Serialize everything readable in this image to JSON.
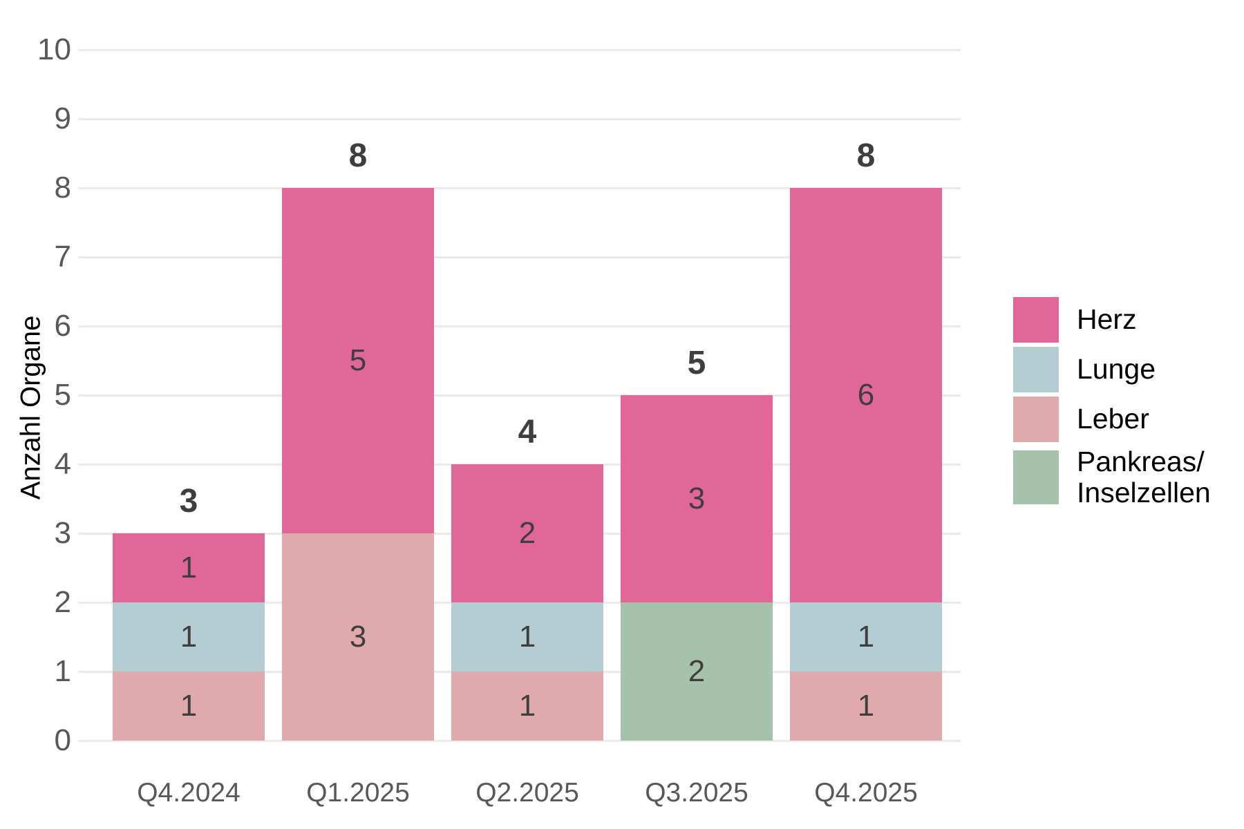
{
  "chart_data": {
    "type": "bar",
    "stacked": true,
    "title": "",
    "xlabel": "",
    "ylabel": "Anzahl Organe",
    "ylim": [
      0,
      10
    ],
    "yticks": [
      0,
      1,
      2,
      3,
      4,
      5,
      6,
      7,
      8,
      9,
      10
    ],
    "grid": "horizontal",
    "legend_position": "right",
    "categories": [
      "Q4.2024",
      "Q1.2025",
      "Q2.2025",
      "Q3.2025",
      "Q4.2025"
    ],
    "series": [
      {
        "name": "Herz",
        "legend_label": "Herz",
        "color": "#e26799",
        "values": [
          1,
          5,
          2,
          3,
          6
        ]
      },
      {
        "name": "Lunge",
        "legend_label": "Lunge",
        "color": "#b3cdd2",
        "values": [
          1,
          0,
          1,
          0,
          1
        ]
      },
      {
        "name": "Leber",
        "legend_label": "Leber",
        "color": "#e0aaad",
        "values": [
          1,
          3,
          1,
          0,
          1
        ]
      },
      {
        "name": "Pankreas/Inselzellen",
        "legend_label": "Pankreas/\nInselzellen",
        "color": "#a6c2ab",
        "values": [
          0,
          0,
          0,
          2,
          0
        ]
      }
    ],
    "stack_order_bottom_to_top": [
      "Leber",
      "Pankreas/Inselzellen",
      "Lunge",
      "Herz"
    ],
    "totals": [
      3,
      8,
      4,
      5,
      8
    ],
    "segment_labels_visible": true
  }
}
